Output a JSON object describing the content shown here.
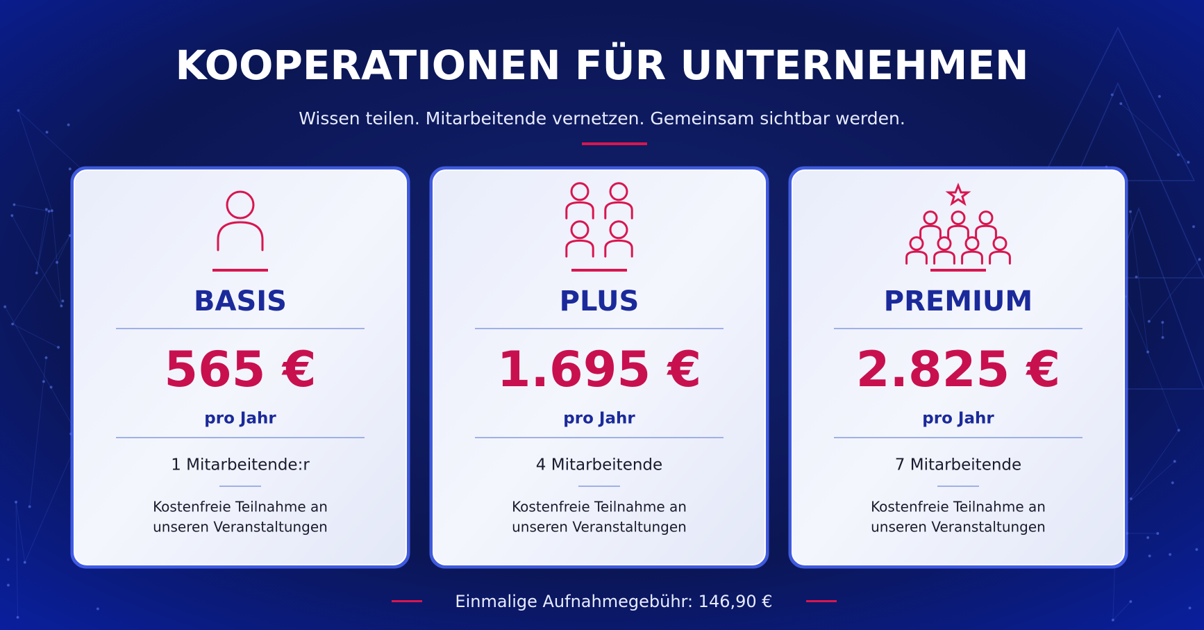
{
  "header": {
    "title": "KOOPERATIONEN FÜR UNTERNEHMEN",
    "subtitle": "Wissen teilen. Mitarbeitende vernetzen. Gemeinsam sichtbar werden."
  },
  "plans": [
    {
      "name": "BASIS",
      "price": "565 €",
      "period": "pro Jahr",
      "members": "1 Mitarbeitende:r",
      "note": [
        "Kostenfreie Teilnahme an",
        "unseren Veranstaltungen"
      ]
    },
    {
      "name": "PLUS",
      "price": "1.695 €",
      "period": "pro Jahr",
      "members": "4 Mitarbeitende",
      "note": [
        "Kostenfreie Teilnahme an",
        "unseren Veranstaltungen"
      ]
    },
    {
      "name": "PREMIUM",
      "price": "2.825 €",
      "period": "pro Jahr",
      "members": "7 Mitarbeitende",
      "note": [
        "Kostenfreie Teilnahme an",
        "unseren Veranstaltungen"
      ]
    }
  ],
  "footer": {
    "text": "Einmalige Aufnahmegebühr: 146,90 €"
  }
}
